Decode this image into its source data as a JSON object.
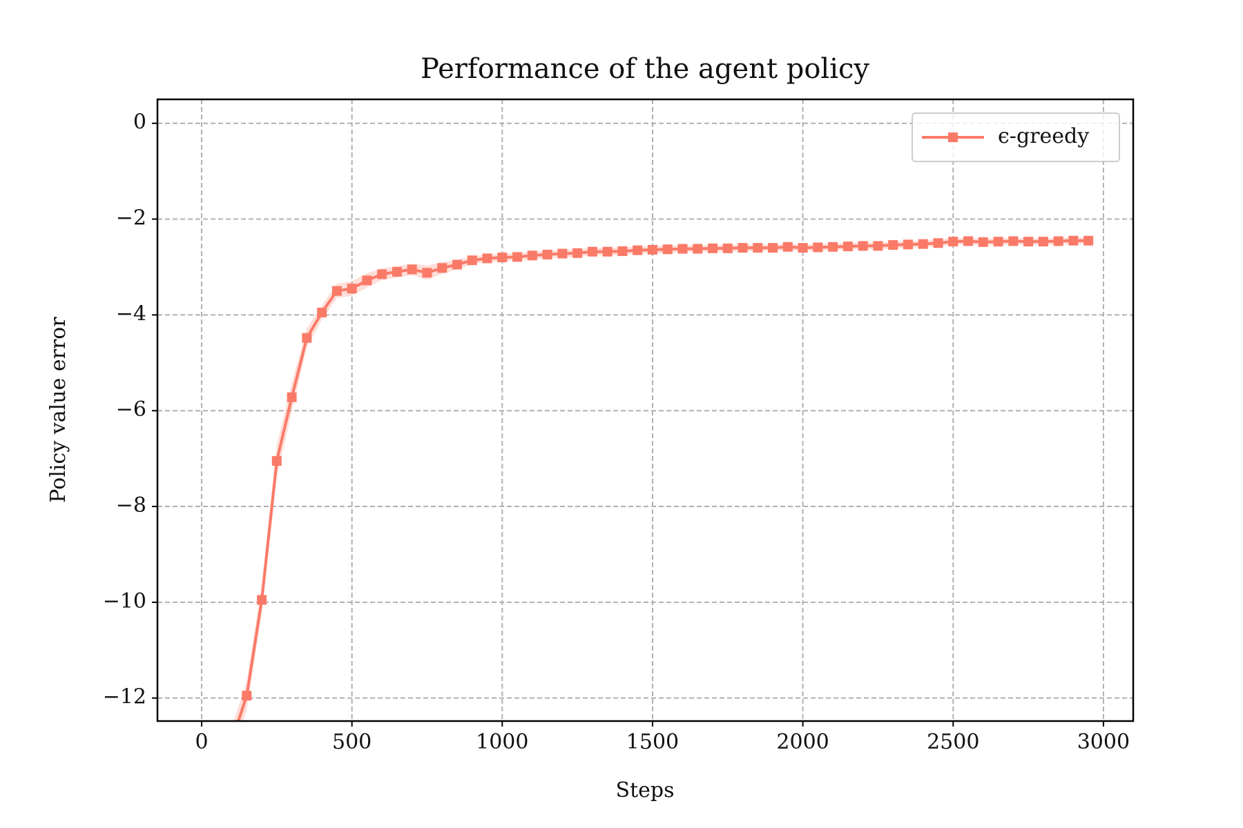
{
  "chart_data": {
    "type": "line",
    "title": "Performance of the agent policy",
    "x_label": "Steps",
    "y_label": "Policy value error",
    "x": [
      100,
      150,
      200,
      250,
      300,
      350,
      400,
      450,
      500,
      550,
      600,
      650,
      700,
      750,
      800,
      850,
      900,
      950,
      1000,
      1050,
      1100,
      1150,
      1200,
      1250,
      1300,
      1350,
      1400,
      1450,
      1500,
      1550,
      1600,
      1650,
      1700,
      1750,
      1800,
      1850,
      1900,
      1950,
      2000,
      2050,
      2100,
      2150,
      2200,
      2250,
      2300,
      2350,
      2400,
      2450,
      2500,
      2550,
      2600,
      2650,
      2700,
      2750,
      2800,
      2850,
      2900,
      2950
    ],
    "series": [
      {
        "name": "ϵ-greedy",
        "color": "#fa7a68",
        "values": [
          -12.9,
          -11.95,
          -9.95,
          -7.05,
          -5.72,
          -4.48,
          -3.95,
          -3.5,
          -3.45,
          -3.28,
          -3.15,
          -3.1,
          -3.05,
          -3.12,
          -3.02,
          -2.95,
          -2.86,
          -2.82,
          -2.8,
          -2.79,
          -2.76,
          -2.74,
          -2.72,
          -2.71,
          -2.68,
          -2.68,
          -2.67,
          -2.65,
          -2.64,
          -2.63,
          -2.62,
          -2.62,
          -2.61,
          -2.61,
          -2.6,
          -2.6,
          -2.6,
          -2.58,
          -2.6,
          -2.59,
          -2.58,
          -2.57,
          -2.56,
          -2.56,
          -2.54,
          -2.53,
          -2.52,
          -2.5,
          -2.47,
          -2.46,
          -2.48,
          -2.47,
          -2.46,
          -2.47,
          -2.47,
          -2.46,
          -2.45,
          -2.45
        ],
        "spread": [
          0.3,
          0.3,
          0.3,
          0.35,
          0.3,
          0.2,
          0.15,
          0.15,
          0.15,
          0.15,
          0.12,
          0.12,
          0.12,
          0.15,
          0.12,
          0.1,
          0.08,
          0.08,
          0.08,
          0.08,
          0.08,
          0.08,
          0.08,
          0.08,
          0.08,
          0.08,
          0.08,
          0.08,
          0.08,
          0.08,
          0.07,
          0.07,
          0.07,
          0.07,
          0.07,
          0.07,
          0.07,
          0.07,
          0.07,
          0.07,
          0.07,
          0.07,
          0.07,
          0.07,
          0.07,
          0.07,
          0.07,
          0.07,
          0.07,
          0.07,
          0.07,
          0.07,
          0.07,
          0.07,
          0.07,
          0.07,
          0.07,
          0.07
        ]
      }
    ],
    "xlim": [
      -147,
      3099
    ],
    "ylim": [
      -12.48,
      0.5
    ],
    "xticks": [
      0,
      500,
      1000,
      1500,
      2000,
      2500,
      3000
    ],
    "yticks": [
      {
        "value": -12,
        "label": "−12"
      },
      {
        "value": -10,
        "label": "−10"
      },
      {
        "value": -8,
        "label": "−8"
      },
      {
        "value": -6,
        "label": "−6"
      },
      {
        "value": -4,
        "label": "−4"
      },
      {
        "value": -2,
        "label": "−2"
      },
      0
    ],
    "grid": true,
    "legend": "upper right"
  }
}
